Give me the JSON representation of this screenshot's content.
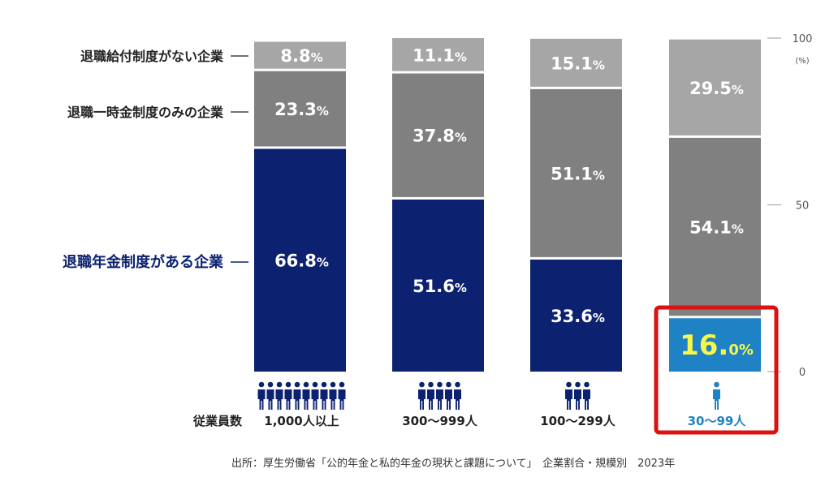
{
  "chart_data": {
    "type": "bar",
    "stacked": true,
    "ylim": [
      0,
      100
    ],
    "y_unit": "(%)",
    "y_ticks": [
      "100",
      "50",
      "0"
    ],
    "categories": [
      "1,000人以上",
      "300〜999人",
      "100〜299人",
      "30〜99人"
    ],
    "x_title": "従業員数",
    "people_icons": [
      10,
      5,
      3,
      1
    ],
    "series": [
      {
        "name": "退職年金制度がある企業",
        "values": [
          66.8,
          51.6,
          33.6,
          16.0
        ],
        "labels": [
          [
            "66.8",
            "%"
          ],
          [
            "51.6",
            "%"
          ],
          [
            "33.6",
            "%"
          ],
          [
            "16.",
            "0%"
          ]
        ]
      },
      {
        "name": "退職一時金制度のみの企業",
        "values": [
          23.3,
          37.8,
          51.1,
          54.1
        ],
        "labels": [
          [
            "23.3",
            "%"
          ],
          [
            "37.8",
            "%"
          ],
          [
            "51.1",
            "%"
          ],
          [
            "54.1",
            "%"
          ]
        ]
      },
      {
        "name": "退職給付制度がない企業",
        "values": [
          8.8,
          11.1,
          15.1,
          29.5
        ],
        "labels": [
          [
            "8.8",
            "%"
          ],
          [
            "11.1",
            "%"
          ],
          [
            "15.1",
            "%"
          ],
          [
            "29.5",
            "%"
          ]
        ]
      }
    ],
    "highlight_index": 3,
    "colors": {
      "pension": "#0c2270",
      "pension_highlight": "#1f82c4",
      "lumpsum": "#808080",
      "none": "#a6a6a6",
      "highlight_text": "#f7f74a",
      "highlight_box": "#dd1111",
      "highlight_label": "#1f82c4",
      "text": "#222222",
      "axis": "#555555"
    }
  },
  "footer": "出所：厚生労働省「公的年金と私的年金の現状と課題について」　企業割合・規模別　2023年"
}
